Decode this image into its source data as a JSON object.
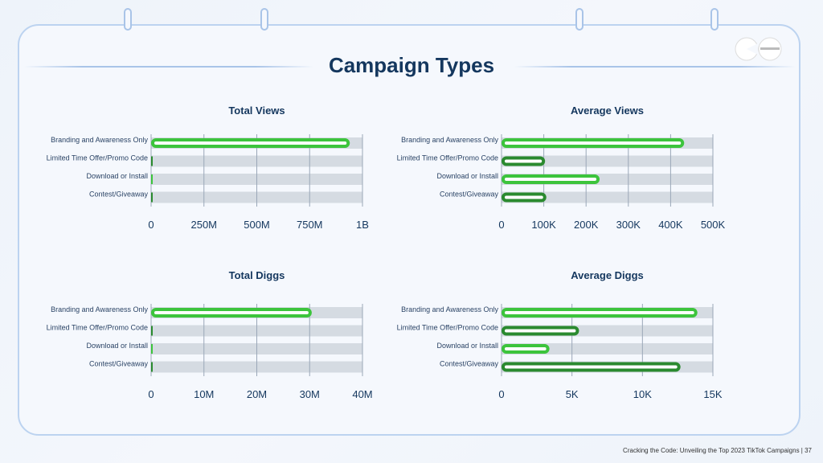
{
  "page_title": "Campaign Types",
  "footer": "Cracking the Code: Unveiling the Top 2023 TikTok Campaigns |  37",
  "colors": {
    "light_green": "#3cc43c",
    "dark_green": "#2a8a2f",
    "track": "#d5dbe2",
    "title": "#14375e"
  },
  "chart_data": [
    {
      "type": "bar",
      "orientation": "horizontal",
      "title": "Total Views",
      "categories": [
        "Branding and Awareness Only",
        "Limited Time Offer/Promo Code",
        "Download or Install",
        "Contest/Giveaway"
      ],
      "values": [
        940000000,
        2000000,
        1000000,
        1000000
      ],
      "xlim": [
        0,
        1000000000
      ],
      "ticks": [
        "0",
        "250M",
        "500M",
        "750M",
        "1B"
      ],
      "grid": true
    },
    {
      "type": "bar",
      "orientation": "horizontal",
      "title": "Average Views",
      "categories": [
        "Branding and Awareness Only",
        "Limited Time Offer/Promo Code",
        "Download or Install",
        "Contest/Giveaway"
      ],
      "values": [
        432000,
        103000,
        232000,
        106000
      ],
      "xlim": [
        0,
        500000
      ],
      "ticks": [
        "0",
        "100K",
        "200K",
        "300K",
        "400K",
        "500K"
      ],
      "grid": true
    },
    {
      "type": "bar",
      "orientation": "horizontal",
      "title": "Total Diggs",
      "categories": [
        "Branding and Awareness Only",
        "Limited Time Offer/Promo Code",
        "Download or Install",
        "Contest/Giveaway"
      ],
      "values": [
        30400000,
        100000,
        50000,
        50000
      ],
      "xlim": [
        0,
        40000000
      ],
      "ticks": [
        "0",
        "10M",
        "20M",
        "30M",
        "40M"
      ],
      "grid": true
    },
    {
      "type": "bar",
      "orientation": "horizontal",
      "title": "Average Diggs",
      "categories": [
        "Branding and Awareness Only",
        "Limited Time Offer/Promo Code",
        "Download or Install",
        "Contest/Giveaway"
      ],
      "values": [
        13900,
        5500,
        3400,
        12700
      ],
      "xlim": [
        0,
        15000
      ],
      "ticks": [
        "0",
        "5K",
        "10K",
        "15K"
      ],
      "grid": true
    }
  ]
}
